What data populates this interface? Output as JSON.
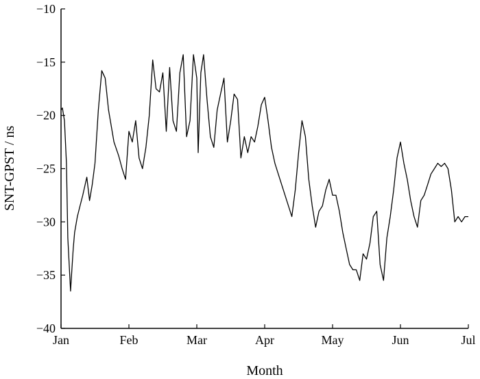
{
  "chart_data": {
    "type": "line",
    "title": "",
    "xlabel": "Month",
    "ylabel": "SNT-GPST / ns",
    "x_ticks": [
      "Jan",
      "Feb",
      "Mar",
      "Apr",
      "May",
      "Jun",
      "Jul"
    ],
    "y_ticks": [
      "-10",
      "-15",
      "-20",
      "-25",
      "-30",
      "-35",
      "-40"
    ],
    "ylim": [
      -40,
      -10
    ],
    "xlim": [
      0,
      6
    ],
    "grid": false,
    "legend": "none",
    "line_color": "#000000",
    "series": [
      {
        "x": [
          0.0,
          0.02,
          0.05,
          0.08,
          0.1,
          0.14,
          0.16,
          0.18,
          0.2,
          0.24,
          0.28,
          0.32,
          0.38,
          0.42,
          0.46,
          0.5,
          0.55,
          0.6,
          0.65,
          0.7,
          0.78,
          0.85,
          0.9,
          0.95,
          1.0,
          1.05,
          1.1,
          1.15,
          1.2,
          1.25,
          1.3,
          1.35,
          1.4,
          1.45,
          1.5,
          1.55,
          1.6,
          1.65,
          1.7,
          1.75,
          1.8,
          1.85,
          1.9,
          1.95,
          2.0,
          2.02,
          2.06,
          2.1,
          2.15,
          2.2,
          2.25,
          2.3,
          2.35,
          2.4,
          2.45,
          2.5,
          2.55,
          2.6,
          2.65,
          2.7,
          2.75,
          2.8,
          2.85,
          2.9,
          2.95,
          3.0,
          3.05,
          3.1,
          3.15,
          3.2,
          3.3,
          3.4,
          3.45,
          3.5,
          3.55,
          3.6,
          3.65,
          3.7,
          3.75,
          3.8,
          3.85,
          3.9,
          3.95,
          4.0,
          4.05,
          4.1,
          4.15,
          4.2,
          4.25,
          4.3,
          4.35,
          4.4,
          4.45,
          4.5,
          4.55,
          4.6,
          4.65,
          4.7,
          4.75,
          4.8,
          4.85,
          4.9,
          4.95,
          5.0,
          5.05,
          5.1,
          5.15,
          5.2,
          5.25,
          5.3,
          5.35,
          5.4,
          5.45,
          5.5,
          5.55,
          5.6,
          5.65,
          5.7,
          5.75,
          5.8,
          5.85,
          5.9,
          5.95,
          6.0
        ],
        "y": [
          -19.5,
          -19.3,
          -20.5,
          -24.5,
          -31.5,
          -36.5,
          -34.5,
          -32.5,
          -31.0,
          -29.5,
          -28.5,
          -27.5,
          -25.8,
          -28.0,
          -26.5,
          -24.5,
          -19.5,
          -15.8,
          -16.5,
          -19.5,
          -22.5,
          -23.8,
          -25.0,
          -26.0,
          -21.5,
          -22.5,
          -20.5,
          -24.0,
          -25.0,
          -23.0,
          -20.0,
          -14.8,
          -17.5,
          -17.8,
          -16.0,
          -21.5,
          -15.5,
          -20.5,
          -21.5,
          -16.0,
          -14.3,
          -22.0,
          -20.5,
          -14.3,
          -16.5,
          -23.5,
          -16.0,
          -14.3,
          -18.5,
          -22.0,
          -23.0,
          -19.5,
          -18.0,
          -16.5,
          -22.5,
          -20.5,
          -18.0,
          -18.5,
          -24.0,
          -22.0,
          -23.5,
          -22.0,
          -22.5,
          -21.0,
          -19.0,
          -18.3,
          -20.5,
          -23.0,
          -24.5,
          -25.5,
          -27.5,
          -29.5,
          -27.0,
          -23.5,
          -20.5,
          -22.0,
          -26.0,
          -28.5,
          -30.5,
          -29.0,
          -28.5,
          -27.0,
          -26.0,
          -27.5,
          -27.5,
          -29.0,
          -31.0,
          -32.5,
          -34.0,
          -34.5,
          -34.5,
          -35.5,
          -33.0,
          -33.5,
          -32.0,
          -29.5,
          -29.0,
          -34.0,
          -35.5,
          -31.5,
          -29.5,
          -27.0,
          -24.0,
          -22.5,
          -24.5,
          -26.0,
          -28.0,
          -29.5,
          -30.5,
          -28.0,
          -27.5,
          -26.5,
          -25.5,
          -25.0,
          -24.5,
          -24.8,
          -24.5,
          -25.0,
          -27.0,
          -30.0,
          -29.5,
          -30.0,
          -29.5,
          -29.5
        ]
      }
    ]
  }
}
